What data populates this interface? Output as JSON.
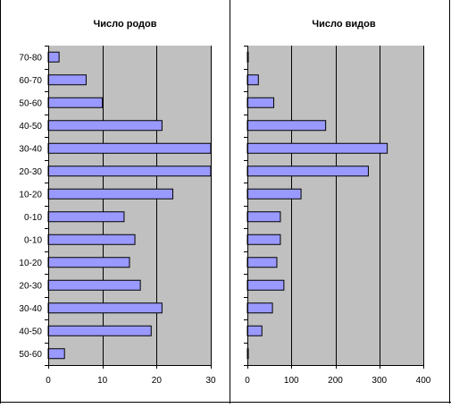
{
  "chart_data": [
    {
      "type": "bar",
      "orientation": "horizontal",
      "title": "Число родов",
      "categories": [
        "70-80",
        "60-70",
        "50-60",
        "40-50",
        "30-40",
        "20-30",
        "10-20",
        "0-10",
        "0-10",
        "10-20",
        "20-30",
        "30-40",
        "40-50",
        "50-60"
      ],
      "values": [
        2,
        7,
        10,
        21,
        30,
        30,
        23,
        14,
        16,
        15,
        17,
        21,
        19,
        3
      ],
      "xlim": [
        0,
        30
      ],
      "xticks": [
        "0",
        "10",
        "20",
        "30"
      ],
      "grid": "vertical",
      "bar_color": "#9999ff",
      "plot_bg": "#c0c0c0"
    },
    {
      "type": "bar",
      "orientation": "horizontal",
      "title": "Число видов",
      "categories": [
        "70-80",
        "60-70",
        "50-60",
        "40-50",
        "30-40",
        "20-30",
        "10-20",
        "0-10",
        "0-10",
        "10-20",
        "20-30",
        "30-40",
        "40-50",
        "50-60"
      ],
      "values": [
        2,
        25,
        60,
        178,
        318,
        275,
        122,
        75,
        75,
        67,
        83,
        57,
        33,
        2
      ],
      "xlim": [
        0,
        400
      ],
      "xticks": [
        "0",
        "100",
        "200",
        "300",
        "400"
      ],
      "grid": "vertical",
      "bar_color": "#9999ff",
      "plot_bg": "#c0c0c0"
    }
  ]
}
